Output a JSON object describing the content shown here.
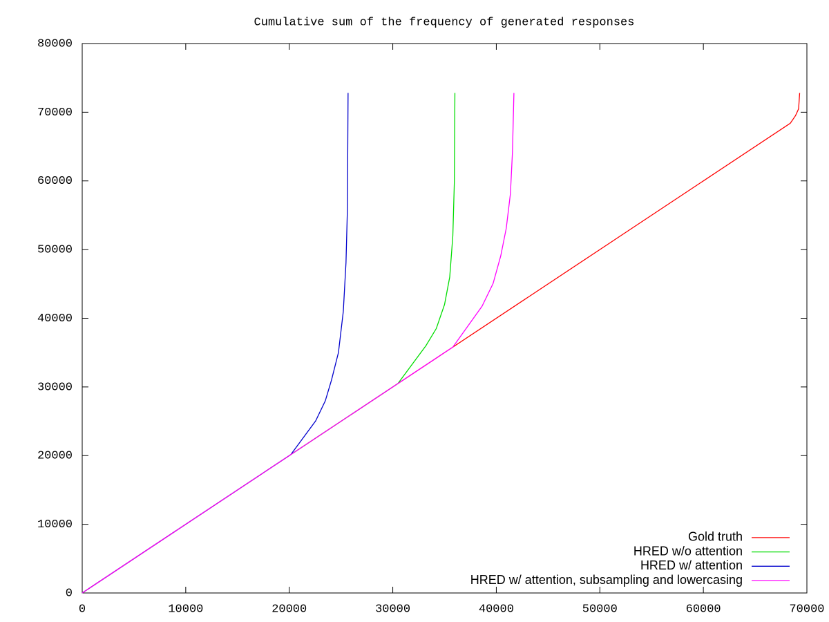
{
  "chart_data": {
    "type": "line",
    "title": "Cumulative sum of the frequency of generated responses",
    "xlim": [
      0,
      70000
    ],
    "xticks": [
      0,
      10000,
      20000,
      30000,
      40000,
      50000,
      60000,
      70000
    ],
    "ylim": [
      0,
      80000
    ],
    "yticks": [
      0,
      10000,
      20000,
      30000,
      40000,
      50000,
      60000,
      70000,
      80000
    ],
    "grid": false,
    "legend": "bottom-right",
    "series": [
      {
        "name": "Gold truth",
        "color": "#ff0000",
        "x": [
          0,
          68400,
          68900,
          69200,
          69300
        ],
        "values": [
          0,
          68400,
          69500,
          70500,
          72800
        ]
      },
      {
        "name": "HRED w/o attention",
        "color": "#00dd00",
        "x": [
          0,
          30500,
          33200,
          34200,
          35000,
          35500,
          35800,
          35950,
          36000
        ],
        "values": [
          0,
          30500,
          36000,
          38500,
          42000,
          46000,
          52000,
          60000,
          72800
        ]
      },
      {
        "name": "HRED w/ attention",
        "color": "#0000cc",
        "x": [
          0,
          20150,
          22550,
          23480,
          24080,
          24750,
          25220,
          25480,
          25620,
          25680
        ],
        "values": [
          0,
          20150,
          25050,
          27970,
          31000,
          35000,
          41000,
          48100,
          56100,
          72800
        ]
      },
      {
        "name": "HRED w/ attention, subsampling and lowercasing",
        "color": "#ff00ff",
        "x": [
          0,
          35800,
          38620,
          39690,
          40430,
          40960,
          41360,
          41560,
          41700
        ],
        "values": [
          0,
          35800,
          41750,
          45070,
          49100,
          53100,
          58100,
          64200,
          72800
        ]
      }
    ]
  }
}
